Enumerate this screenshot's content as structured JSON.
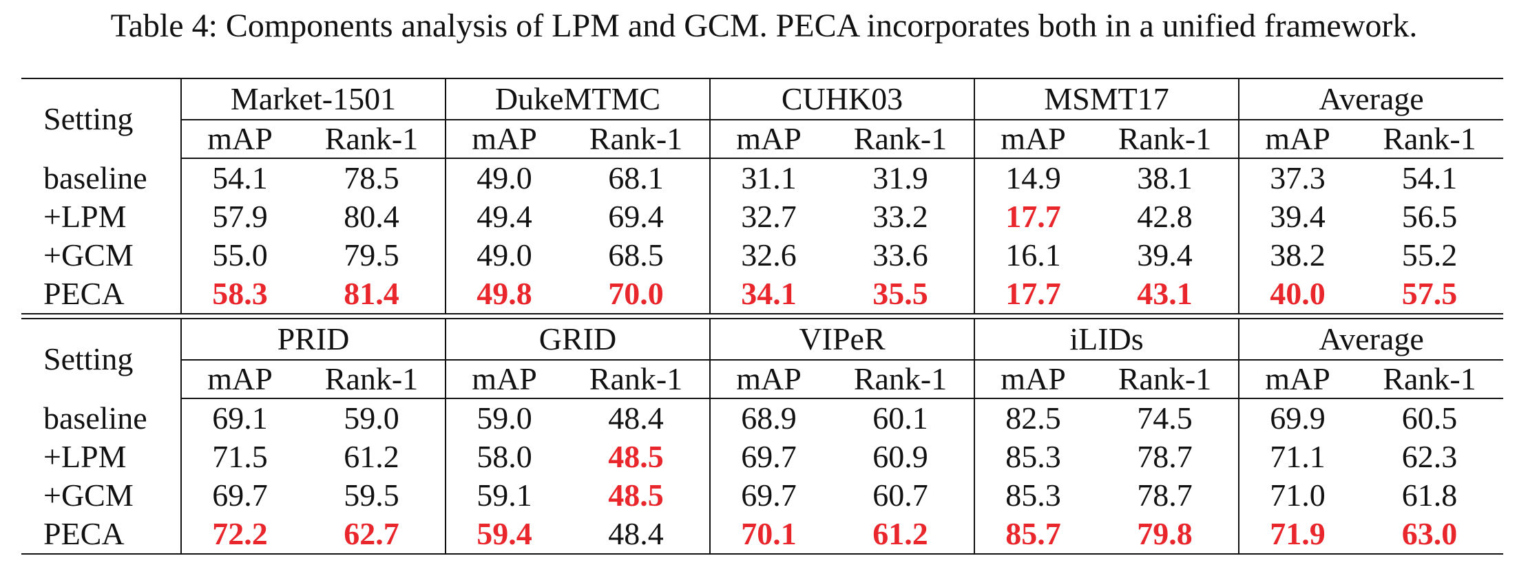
{
  "caption": "Table 4: Components analysis of LPM and GCM. PECA incorporates both in a unified framework.",
  "setting_header": "Setting",
  "metrics": [
    "mAP",
    "Rank-1"
  ],
  "highlight_color": "#e8262b",
  "tables": [
    {
      "groups": [
        "Market-1501",
        "DukeMTMC",
        "CUHK03",
        "MSMT17",
        "Average"
      ],
      "rows": [
        {
          "setting": "baseline",
          "values": [
            "54.1",
            "78.5",
            "49.0",
            "68.1",
            "31.1",
            "31.9",
            "14.9",
            "38.1",
            "37.3",
            "54.1"
          ],
          "bold": []
        },
        {
          "setting": "+LPM",
          "values": [
            "57.9",
            "80.4",
            "49.4",
            "69.4",
            "32.7",
            "33.2",
            "17.7",
            "42.8",
            "39.4",
            "56.5"
          ],
          "bold": [
            6
          ]
        },
        {
          "setting": "+GCM",
          "values": [
            "55.0",
            "79.5",
            "49.0",
            "68.5",
            "32.6",
            "33.6",
            "16.1",
            "39.4",
            "38.2",
            "55.2"
          ],
          "bold": []
        },
        {
          "setting": "PECA",
          "values": [
            "58.3",
            "81.4",
            "49.8",
            "70.0",
            "34.1",
            "35.5",
            "17.7",
            "43.1",
            "40.0",
            "57.5"
          ],
          "bold": [
            0,
            1,
            2,
            3,
            4,
            5,
            6,
            7,
            8,
            9
          ]
        }
      ]
    },
    {
      "groups": [
        "PRID",
        "GRID",
        "VIPeR",
        "iLIDs",
        "Average"
      ],
      "rows": [
        {
          "setting": "baseline",
          "values": [
            "69.1",
            "59.0",
            "59.0",
            "48.4",
            "68.9",
            "60.1",
            "82.5",
            "74.5",
            "69.9",
            "60.5"
          ],
          "bold": []
        },
        {
          "setting": "+LPM",
          "values": [
            "71.5",
            "61.2",
            "58.0",
            "48.5",
            "69.7",
            "60.9",
            "85.3",
            "78.7",
            "71.1",
            "62.3"
          ],
          "bold": [
            3
          ]
        },
        {
          "setting": "+GCM",
          "values": [
            "69.7",
            "59.5",
            "59.1",
            "48.5",
            "69.7",
            "60.7",
            "85.3",
            "78.7",
            "71.0",
            "61.8"
          ],
          "bold": [
            3
          ]
        },
        {
          "setting": "PECA",
          "values": [
            "72.2",
            "62.7",
            "59.4",
            "48.4",
            "70.1",
            "61.2",
            "85.7",
            "79.8",
            "71.9",
            "63.0"
          ],
          "bold": [
            0,
            1,
            2,
            4,
            5,
            6,
            7,
            8,
            9
          ]
        }
      ]
    }
  ]
}
